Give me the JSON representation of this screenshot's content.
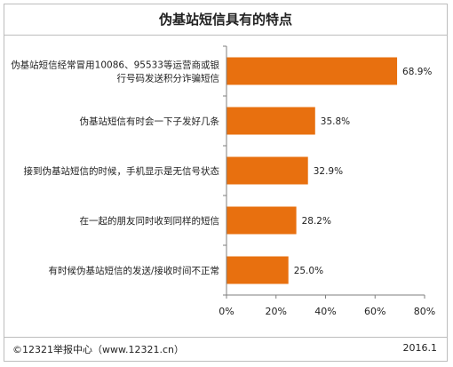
{
  "chart_data": {
    "type": "bar",
    "orientation": "horizontal",
    "title": "伪基站短信具有的特点",
    "categories": [
      "伪基站短信经常冒用10086、95533等运营商或银行号码发送积分诈骗短信",
      "伪基站短信有时会一下子发好几条",
      "接到伪基站短信的时候，手机显示是无信号状态",
      "在一起的朋友同时收到同样的短信",
      "有时候伪基站短信的发送/接收时间不正常"
    ],
    "category_lines": [
      [
        "伪基站短信经常冒用10086、95533等运营商或银",
        "行号码发送积分诈骗短信"
      ],
      [
        "伪基站短信有时会一下子发好几条"
      ],
      [
        "接到伪基站短信的时候，手机显示是无信号状态"
      ],
      [
        "在一起的朋友同时收到同样的短信"
      ],
      [
        "有时候伪基站短信的发送/接收时间不正常"
      ]
    ],
    "values": [
      68.9,
      35.8,
      32.9,
      28.2,
      25.0
    ],
    "value_labels": [
      "68.9%",
      "35.8%",
      "32.9%",
      "28.2%",
      "25.0%"
    ],
    "xlim": [
      0,
      80
    ],
    "xticks": [
      0,
      20,
      40,
      60,
      80
    ],
    "xtick_labels": [
      "0%",
      "20%",
      "40%",
      "60%",
      "80%"
    ],
    "bar_color": "#e8700f",
    "grid": false,
    "legend": "none"
  },
  "footer": {
    "source": "©12321举报中心（www.12321.cn）",
    "date": "2016.1"
  }
}
